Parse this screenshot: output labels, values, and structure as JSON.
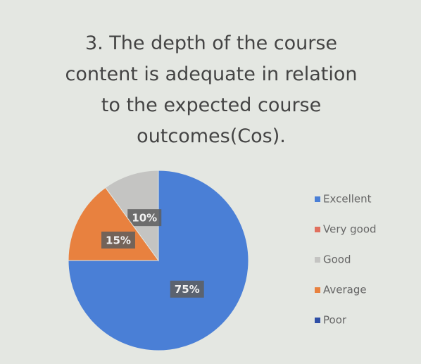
{
  "chart_data": {
    "type": "pie",
    "title": "3. The depth of the course content is adequate in relation to the expected course outcomes(Cos).",
    "categories": [
      "Excellent",
      "Very good",
      "Good",
      "Average",
      "Poor"
    ],
    "values": [
      75,
      0,
      10,
      15,
      0
    ],
    "value_labels": [
      "75%",
      null,
      "10%",
      "15%",
      null
    ],
    "colors": [
      "#4a7fd6",
      "#e0705e",
      "#c4c4c2",
      "#e8813f",
      "#2f4fa6"
    ],
    "legend": "right"
  }
}
